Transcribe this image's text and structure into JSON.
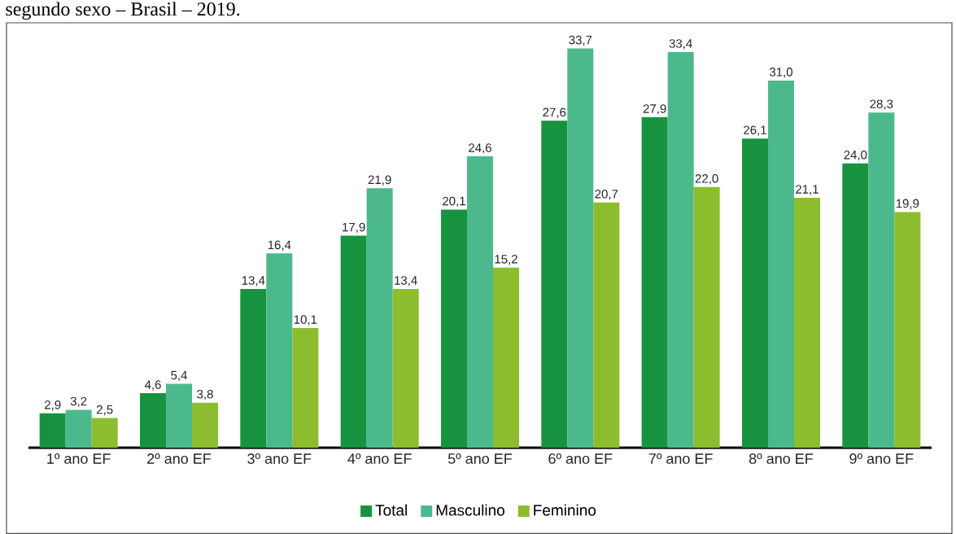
{
  "chart_data": {
    "type": "bar",
    "title": "segundo sexo – Brasil – 2019.",
    "categories": [
      "1º ano EF",
      "2º ano EF",
      "3º ano EF",
      "4º ano EF",
      "5º ano EF",
      "6º ano EF",
      "7º ano EF",
      "8º ano EF",
      "9º ano EF"
    ],
    "series": [
      {
        "name": "Total",
        "color": "#17933f",
        "values": [
          2.9,
          4.6,
          13.4,
          17.9,
          20.1,
          27.6,
          27.9,
          26.1,
          24.0
        ],
        "value_labels": [
          "2,9",
          "4,6",
          "13,4",
          "17,9",
          "20,1",
          "27,6",
          "27,9",
          "26,1",
          "24,0"
        ]
      },
      {
        "name": "Masculino",
        "color": "#4cb98c",
        "values": [
          3.2,
          5.4,
          16.4,
          21.9,
          24.6,
          33.7,
          33.4,
          31.0,
          28.3
        ],
        "value_labels": [
          "3,2",
          "5,4",
          "16,4",
          "21,9",
          "24,6",
          "33,7",
          "33,4",
          "31,0",
          "28,3"
        ]
      },
      {
        "name": "Feminino",
        "color": "#8cbd2e",
        "values": [
          2.5,
          3.8,
          10.1,
          13.4,
          15.2,
          20.7,
          22.0,
          21.1,
          19.9
        ],
        "value_labels": [
          "2,5",
          "3,8",
          "10,1",
          "13,4",
          "15,2",
          "20,7",
          "22,0",
          "21,1",
          "19,9"
        ]
      }
    ],
    "legend": "bottom"
  }
}
